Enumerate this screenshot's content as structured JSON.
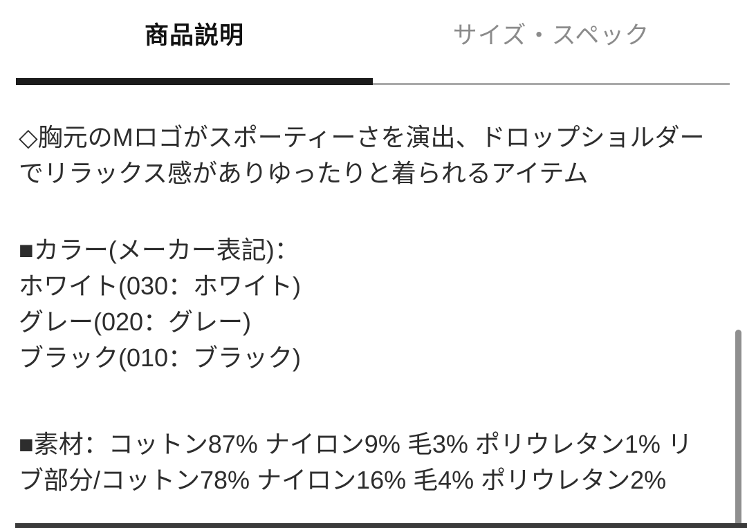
{
  "tabs": {
    "description": {
      "label": "商品説明",
      "active": true
    },
    "spec": {
      "label": "サイズ・スペック",
      "active": false
    }
  },
  "content": {
    "intro": "◇胸元のMロゴがスポーティーさを演出、ドロップショルダーでリラックス感がありゆったりと着られるアイテム",
    "color_heading": "■カラー(メーカー表記)：",
    "colors": [
      "ホワイト(030：ホワイト)",
      "グレー(020：グレー)",
      "ブラック(010：ブラック)"
    ],
    "material": "■素材：コットン87% ナイロン9% 毛3% ポリウレタン1% リブ部分/コットン78% ナイロン16% 毛4% ポリウレタン2%"
  },
  "theme": {
    "active_tab_text": "#111111",
    "inactive_tab_text": "#8b8b8b",
    "active_indicator": "#1b1b1b",
    "inactive_indicator": "#a9a9a9",
    "body_text": "#2d2d2d",
    "scrollbar_thumb": "#8f8f8f",
    "bottom_bar": "#3b3b3b",
    "background": "#ffffff"
  }
}
